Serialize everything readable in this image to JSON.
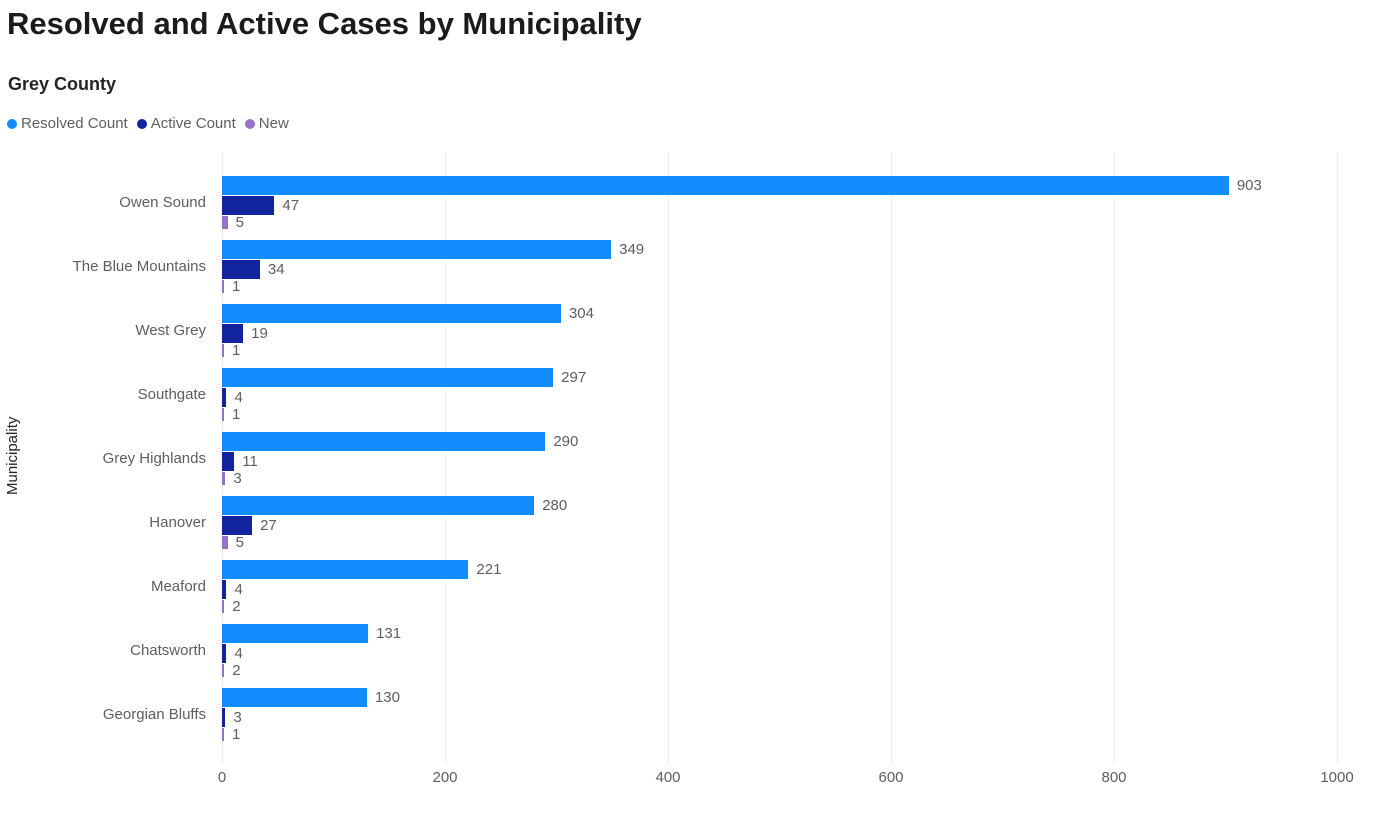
{
  "header": {
    "title": "Resolved and Active Cases by Municipality",
    "subtitle": "Grey County"
  },
  "legend": [
    {
      "label": "Resolved Count",
      "color": "#118DFF"
    },
    {
      "label": "Active Count",
      "color": "#12239E"
    },
    {
      "label": "New",
      "color": "#9673C9"
    }
  ],
  "chart_data": {
    "type": "bar",
    "orientation": "horizontal",
    "title": "Resolved and Active Cases by Municipality",
    "subtitle": "Grey County",
    "xlabel": "",
    "ylabel": "Municipality",
    "xlim": [
      0,
      1000
    ],
    "xticks": [
      0,
      200,
      400,
      600,
      800,
      1000
    ],
    "grid": "vertical-dotted",
    "grid_color": "#DEDEDE",
    "label_color": "#605E5C",
    "legend_position": "top-left",
    "categories": [
      "Owen Sound",
      "The Blue Mountains",
      "West Grey",
      "Southgate",
      "Grey Highlands",
      "Hanover",
      "Meaford",
      "Chatsworth",
      "Georgian Bluffs"
    ],
    "series": [
      {
        "name": "Resolved Count",
        "color": "#118DFF",
        "values": [
          903,
          349,
          304,
          297,
          290,
          280,
          221,
          131,
          130
        ]
      },
      {
        "name": "Active Count",
        "color": "#12239E",
        "values": [
          47,
          34,
          19,
          4,
          11,
          27,
          4,
          4,
          3
        ]
      },
      {
        "name": "New",
        "color": "#9673C9",
        "values": [
          5,
          1,
          1,
          1,
          3,
          5,
          2,
          2,
          1
        ]
      }
    ]
  }
}
